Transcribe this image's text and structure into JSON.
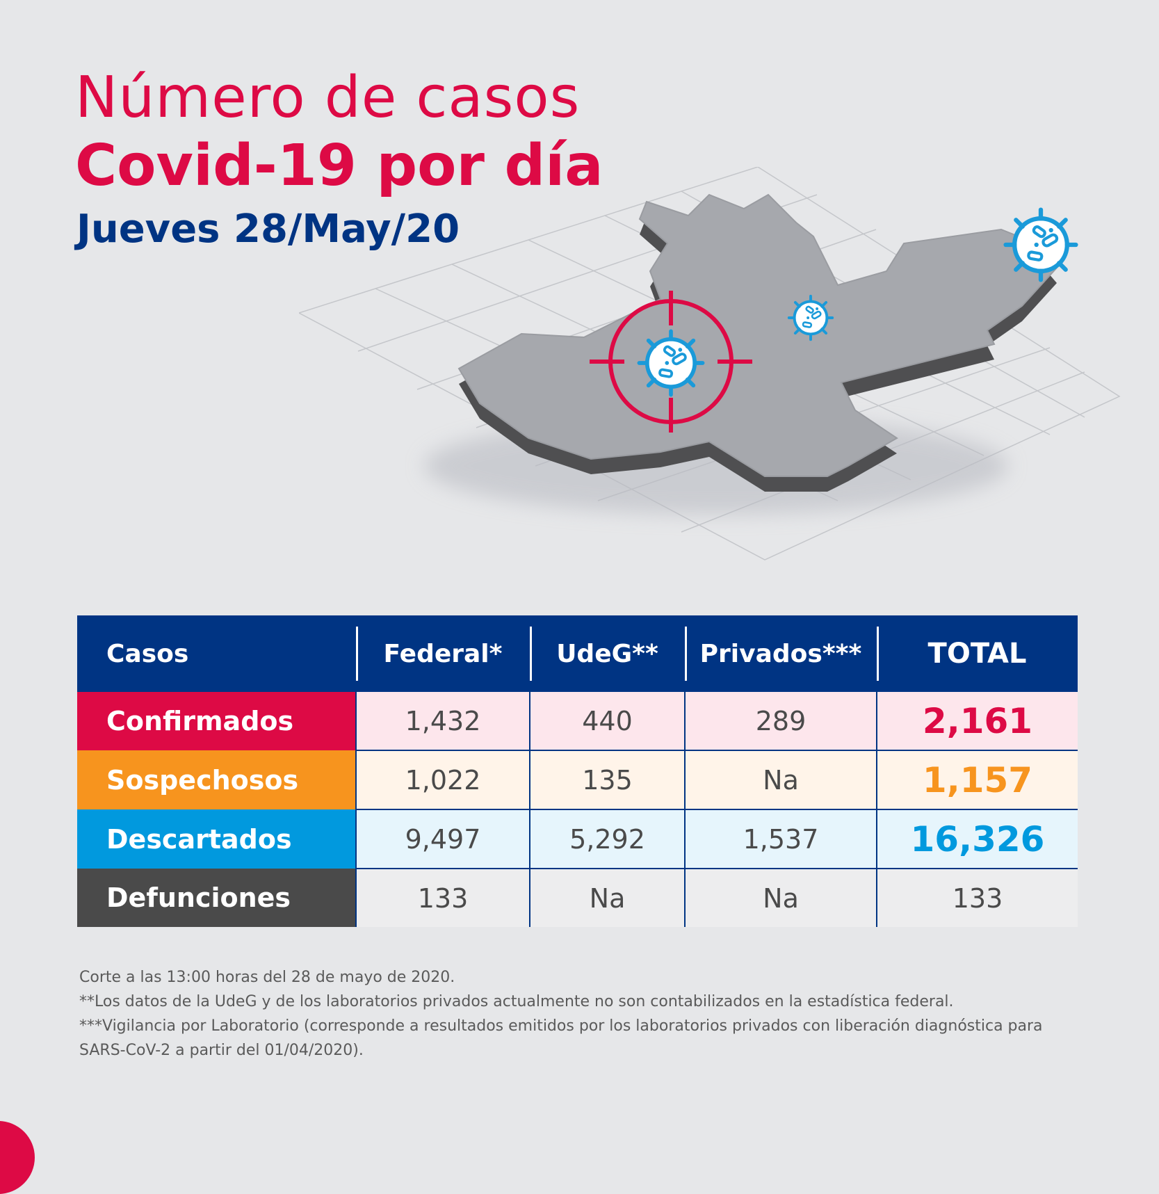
{
  "header": {
    "title_line1": "Número de casos",
    "title_line2": "Covid-19 por día",
    "date": "Jueves 28/May/20"
  },
  "colors": {
    "red": "#dd0a45",
    "orange": "#f7941e",
    "blue": "#0199de",
    "navy": "#003483",
    "gray": "#4a4a4a"
  },
  "table": {
    "headers": [
      "Casos",
      "Federal*",
      "UdeG**",
      "Privados***",
      "TOTAL"
    ],
    "rows": [
      {
        "label": "Confirmados",
        "federal": "1,432",
        "udeg": "440",
        "privados": "289",
        "total": "2,161"
      },
      {
        "label": "Sospechosos",
        "federal": "1,022",
        "udeg": "135",
        "privados": "Na",
        "total": "1,157"
      },
      {
        "label": "Descartados",
        "federal": "9,497",
        "udeg": "5,292",
        "privados": "1,537",
        "total": "16,326"
      },
      {
        "label": "Defunciones",
        "federal": "133",
        "udeg": "Na",
        "privados": "Na",
        "total": "133"
      }
    ]
  },
  "notes": [
    "Corte a las 13:00 horas del 28 de mayo de 2020.",
    "**Los datos de la UdeG y de los laboratorios privados actualmente no son contabilizados en la estadística federal.",
    "***Vigilancia por Laboratorio (corresponde a resultados emitidos por los laboratorios privados con liberación diagnóstica para SARS-CoV-2 a partir del 01/04/2020)."
  ]
}
